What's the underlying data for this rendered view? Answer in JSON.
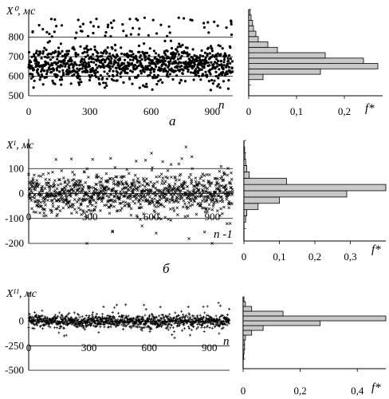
{
  "chart_data": [
    {
      "id": "a",
      "panel_label": "а",
      "type": "scatter",
      "ylabel": "X⁰, мс",
      "xlabel": "n",
      "xlim": [
        0,
        1000
      ],
      "ylim": [
        500,
        900
      ],
      "yticks": [
        500,
        600,
        700,
        800
      ],
      "xticks": [
        0,
        300,
        600,
        900
      ],
      "grid": "horizontal",
      "marker": "dot",
      "series_summary": {
        "n_points": 1000,
        "center": 660,
        "spread": 45,
        "outlier_range": [
          800,
          900
        ]
      },
      "histogram": {
        "type": "bar",
        "orientation": "horizontal",
        "xlabel": "f*",
        "xlim": [
          0,
          0.28
        ],
        "xticks": [
          0,
          0.1,
          0.2
        ],
        "xtick_labels": [
          "0",
          "0,1",
          "0,2"
        ],
        "bin_edges": [
          500,
          525,
          550,
          575,
          600,
          625,
          650,
          675,
          700,
          725,
          750,
          775,
          800,
          825,
          850,
          875,
          900
        ],
        "values": [
          0.0,
          0.0,
          0.0,
          0.03,
          0.15,
          0.27,
          0.24,
          0.16,
          0.06,
          0.04,
          0.02,
          0.015,
          0.01,
          0.008,
          0.005,
          0.003
        ]
      }
    },
    {
      "id": "b",
      "panel_label": "б",
      "type": "scatter",
      "ylabel": "Xᴵ, мс",
      "xlabel": "n -1",
      "xlim": [
        0,
        1000
      ],
      "ylim": [
        -200,
        200
      ],
      "yticks": [
        -200,
        -100,
        0,
        100
      ],
      "xticks": [
        0,
        300,
        600,
        900
      ],
      "grid": "horizontal",
      "marker": "cross",
      "series_summary": {
        "n_points": 999,
        "center": 0,
        "spread": 40
      },
      "histogram": {
        "type": "bar",
        "orientation": "horizontal",
        "xlabel": "f*",
        "xlim": [
          0,
          0.4
        ],
        "xticks": [
          0,
          0.1,
          0.2,
          0.3
        ],
        "xtick_labels": [
          "0",
          "0,1",
          "0,2",
          "0,3"
        ],
        "bin_edges": [
          -200,
          -175,
          -150,
          -125,
          -100,
          -75,
          -50,
          -25,
          0,
          25,
          50,
          75,
          100,
          125,
          150,
          175,
          200
        ],
        "values": [
          0.0,
          0.0,
          0.0,
          0.005,
          0.008,
          0.04,
          0.1,
          0.29,
          0.4,
          0.12,
          0.015,
          0.008,
          0.005,
          0.003,
          0.002,
          0.0
        ]
      }
    },
    {
      "id": "c",
      "type": "scatter",
      "ylabel": "Xᴵᴵ, мс",
      "xlabel": "n",
      "xlim": [
        0,
        1000
      ],
      "ylim": [
        -500,
        250
      ],
      "yticks": [
        -500,
        -250,
        0
      ],
      "xticks": [
        0,
        300,
        600,
        900
      ],
      "grid": "horizontal",
      "marker": "plus",
      "series_summary": {
        "n_points": 998,
        "center": 0,
        "spread": 35
      },
      "histogram": {
        "type": "bar",
        "orientation": "horizontal",
        "xlabel": "f*",
        "xlim": [
          0,
          0.5
        ],
        "xticks": [
          0,
          0.2,
          0.4
        ],
        "xtick_labels": [
          "0",
          "0,2",
          "0,4"
        ],
        "bin_edges": [
          -500,
          -450,
          -400,
          -350,
          -300,
          -250,
          -200,
          -150,
          -100,
          -50,
          0,
          50,
          100,
          150,
          200,
          250
        ],
        "values": [
          0.0,
          0.0,
          0.002,
          0.003,
          0.005,
          0.005,
          0.008,
          0.03,
          0.07,
          0.27,
          0.5,
          0.14,
          0.03,
          0.008,
          0.003
        ]
      }
    }
  ]
}
